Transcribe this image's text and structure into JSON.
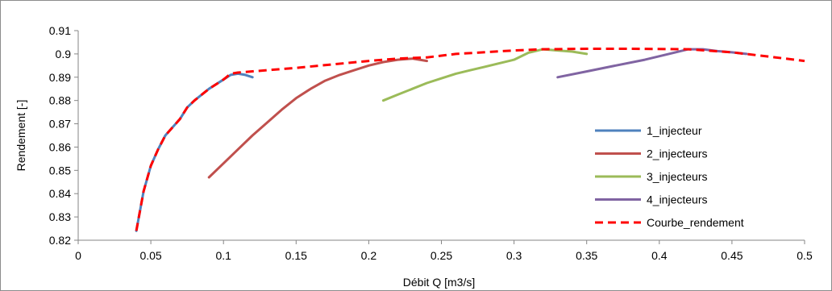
{
  "chart_data": {
    "type": "line",
    "title": "",
    "xlabel": "Débit Q [m3/s]",
    "ylabel": "Rendement [-]",
    "xlim": [
      0,
      0.5
    ],
    "ylim": [
      0.82,
      0.91
    ],
    "x_ticks": [
      0,
      0.05,
      0.1,
      0.15,
      0.2,
      0.25,
      0.3,
      0.35,
      0.4,
      0.45,
      0.5
    ],
    "x_tick_labels": [
      "0",
      "0.05",
      "0.1",
      "0.15",
      "0.2",
      "0.25",
      "0.3",
      "0.35",
      "0.4",
      "0.45",
      "0.5"
    ],
    "y_ticks": [
      0.82,
      0.83,
      0.84,
      0.85,
      0.86,
      0.87,
      0.88,
      0.89,
      0.9,
      0.91
    ],
    "y_tick_labels": [
      "0.82",
      "0.83",
      "0.84",
      "0.85",
      "0.86",
      "0.87",
      "0.88",
      "0.89",
      "0.9",
      "0.91"
    ],
    "grid": false,
    "legend_position": "right",
    "series": [
      {
        "name": "1_injecteur",
        "color": "#4f81bd",
        "dash": false,
        "x": [
          0.04,
          0.045,
          0.05,
          0.055,
          0.06,
          0.07,
          0.075,
          0.08,
          0.09,
          0.1,
          0.105,
          0.11,
          0.115,
          0.12
        ],
        "y": [
          0.824,
          0.841,
          0.852,
          0.859,
          0.865,
          0.872,
          0.877,
          0.88,
          0.885,
          0.889,
          0.891,
          0.8915,
          0.891,
          0.89
        ]
      },
      {
        "name": "2_injecteurs",
        "color": "#c0504d",
        "dash": false,
        "x": [
          0.09,
          0.1,
          0.11,
          0.12,
          0.13,
          0.14,
          0.15,
          0.16,
          0.17,
          0.18,
          0.19,
          0.2,
          0.21,
          0.22,
          0.23,
          0.235,
          0.24
        ],
        "y": [
          0.847,
          0.853,
          0.859,
          0.865,
          0.8705,
          0.876,
          0.881,
          0.885,
          0.8885,
          0.891,
          0.893,
          0.895,
          0.8965,
          0.8975,
          0.898,
          0.8975,
          0.897
        ]
      },
      {
        "name": "3_injecteurs",
        "color": "#9bbb59",
        "dash": false,
        "x": [
          0.21,
          0.22,
          0.23,
          0.24,
          0.25,
          0.26,
          0.27,
          0.28,
          0.29,
          0.3,
          0.31,
          0.32,
          0.33,
          0.34,
          0.35
        ],
        "y": [
          0.88,
          0.8825,
          0.885,
          0.8875,
          0.8895,
          0.8915,
          0.893,
          0.8945,
          0.896,
          0.8975,
          0.9005,
          0.902,
          0.9015,
          0.901,
          0.9
        ]
      },
      {
        "name": "4_injecteurs",
        "color": "#8064a2",
        "dash": false,
        "x": [
          0.33,
          0.35,
          0.37,
          0.39,
          0.41,
          0.42,
          0.43,
          0.44,
          0.45,
          0.46
        ],
        "y": [
          0.89,
          0.8925,
          0.895,
          0.8975,
          0.9005,
          0.902,
          0.902,
          0.9012,
          0.9007,
          0.9
        ]
      },
      {
        "name": "Courbe_rendement",
        "color": "#ff0000",
        "dash": true,
        "x": [
          0.04,
          0.045,
          0.05,
          0.055,
          0.06,
          0.07,
          0.075,
          0.08,
          0.09,
          0.1,
          0.105,
          0.11,
          0.15,
          0.2,
          0.22,
          0.24,
          0.26,
          0.3,
          0.32,
          0.35,
          0.38,
          0.42,
          0.45,
          0.48,
          0.5
        ],
        "y": [
          0.824,
          0.841,
          0.852,
          0.859,
          0.865,
          0.872,
          0.877,
          0.88,
          0.885,
          0.889,
          0.8915,
          0.892,
          0.894,
          0.897,
          0.898,
          0.8985,
          0.9,
          0.9015,
          0.902,
          0.9022,
          0.9022,
          0.902,
          0.9007,
          0.8985,
          0.897
        ]
      }
    ]
  }
}
